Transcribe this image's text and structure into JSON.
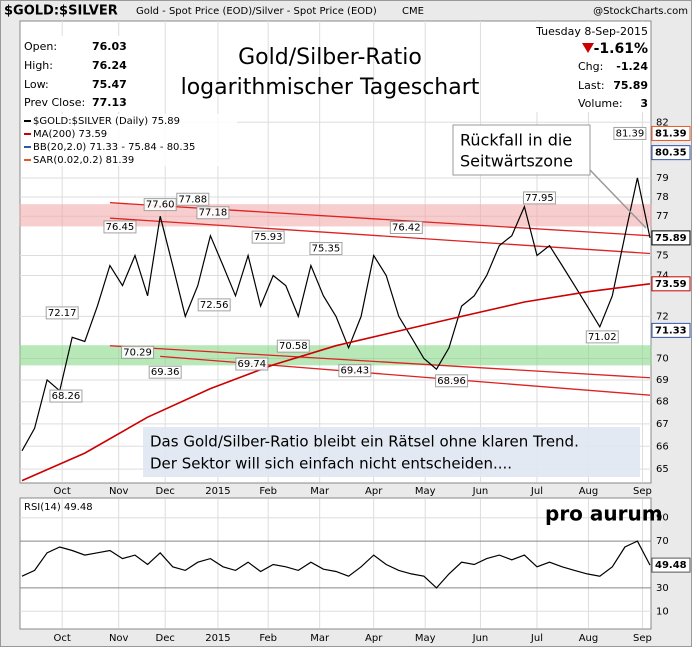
{
  "header": {
    "symbol": "$GOLD:$SILVER",
    "description": "Gold - Spot Price (EOD)/Silver - Spot Price (EOD)",
    "exchange": "CME",
    "source": "@StockCharts.com"
  },
  "info": {
    "rows": [
      {
        "label": "Open:",
        "value": 76.03
      },
      {
        "label": "High:",
        "value": 76.24
      },
      {
        "label": "Low:",
        "value": 75.47
      },
      {
        "label": "Prev Close:",
        "value": 77.13
      }
    ],
    "date": "Tuesday 8-Sep-2015",
    "change_pct": "-1.61%",
    "stats": [
      {
        "label": "Chg:",
        "value": -1.24
      },
      {
        "label": "Last:",
        "value": 75.89
      },
      {
        "label": "Volume:",
        "value": 3
      }
    ]
  },
  "logo": "pro aurum",
  "chart_data": [
    {
      "type": "line",
      "title": "Gold/Silber-Ratio",
      "subtitle": "logarithmischer Tageschart",
      "log_scale": true,
      "grid": true,
      "xlim": [
        0,
        50
      ],
      "ylim": [
        64.44,
        87.7
      ],
      "yticks": [
        65,
        66,
        67,
        68,
        69,
        70,
        72,
        74,
        75,
        77,
        78,
        79,
        82
      ],
      "xticks": [
        {
          "value": 3.2,
          "label": "Oct"
        },
        {
          "value": 7.7,
          "label": "Nov"
        },
        {
          "value": 11.4,
          "label": "Dec"
        },
        {
          "value": 15.6,
          "label": "2015"
        },
        {
          "value": 19.6,
          "label": "Feb"
        },
        {
          "value": 23.7,
          "label": "Mar"
        },
        {
          "value": 28.0,
          "label": "Apr"
        },
        {
          "value": 32.1,
          "label": "May"
        },
        {
          "value": 36.5,
          "label": "Jun"
        },
        {
          "value": 41.0,
          "label": "Jul"
        },
        {
          "value": 45.1,
          "label": "Aug"
        },
        {
          "value": 49.4,
          "label": "Sep"
        }
      ],
      "x": [
        0,
        1,
        2,
        3,
        4,
        5,
        6,
        7,
        8,
        9,
        10,
        11,
        12,
        13,
        14,
        15,
        16,
        17,
        18,
        19,
        20,
        21,
        22,
        23,
        24,
        25,
        26,
        27,
        28,
        29,
        30,
        31,
        32,
        33,
        34,
        35,
        36,
        37,
        38,
        39,
        40,
        41,
        42,
        43,
        44,
        45,
        46,
        47,
        48,
        49,
        50
      ],
      "series": [
        {
          "name": "$GOLD:$SILVER (Daily) 75.89",
          "color": "#000000",
          "values": [
            65.8,
            66.8,
            69.0,
            68.5,
            71.0,
            70.8,
            72.5,
            74.5,
            73.5,
            75.0,
            73.0,
            77.0,
            74.5,
            72.0,
            73.5,
            76.0,
            74.5,
            73.0,
            75.0,
            72.5,
            74.0,
            73.5,
            72.0,
            74.5,
            73.0,
            72.0,
            70.5,
            72.0,
            75.0,
            74.0,
            72.0,
            71.0,
            70.0,
            69.5,
            70.5,
            72.5,
            73.0,
            74.0,
            75.5,
            76.0,
            77.5,
            75.0,
            75.5,
            74.5,
            73.5,
            72.5,
            71.5,
            73.0,
            76.0,
            79.0,
            75.89
          ]
        },
        {
          "name": "MA(200) 73.59",
          "color": "#cc0000",
          "x": [
            0,
            5,
            10,
            15,
            20,
            25,
            30,
            35,
            40,
            45,
            50
          ],
          "values": [
            64.5,
            65.7,
            67.3,
            68.6,
            69.7,
            70.6,
            71.3,
            72.0,
            72.7,
            73.2,
            73.59
          ]
        }
      ],
      "legend_extra": [
        {
          "name": "BB(20,2.0) 71.33 - 75.84 - 80.35",
          "color": "#3355aa"
        },
        {
          "name": "SAR(0.02,0.2) 81.39",
          "color": "#ee5522"
        }
      ],
      "zones": [
        {
          "from": 76.5,
          "to": 77.6,
          "color": "#f4a6a6"
        },
        {
          "from": 69.7,
          "to": 70.6,
          "color": "#7fd67f"
        }
      ],
      "trend_lines": [
        {
          "x": [
            7,
            50
          ],
          "y": [
            77.7,
            76.0
          ]
        },
        {
          "x": [
            7,
            50
          ],
          "y": [
            76.9,
            75.1
          ]
        },
        {
          "x": [
            7,
            50
          ],
          "y": [
            70.6,
            69.1
          ]
        },
        {
          "x": [
            11,
            50
          ],
          "y": [
            70.1,
            68.3
          ]
        }
      ],
      "trend_color": "#dd2222",
      "price_labels": [
        {
          "x": 7.8,
          "value": 76.45,
          "label": "76.45"
        },
        {
          "x": 11.0,
          "value": 77.6,
          "label": "77.60"
        },
        {
          "x": 13.6,
          "value": 77.88,
          "label": "77.88"
        },
        {
          "x": 15.2,
          "value": 77.18,
          "label": "77.18"
        },
        {
          "x": 19.6,
          "value": 75.93,
          "label": "75.93"
        },
        {
          "x": 24.2,
          "value": 75.35,
          "label": "75.35"
        },
        {
          "x": 30.6,
          "value": 76.42,
          "label": "76.42"
        },
        {
          "x": 41.2,
          "value": 77.95,
          "label": "77.95"
        },
        {
          "x": 48.4,
          "value": 81.39,
          "label": "81.39"
        },
        {
          "x": 3.2,
          "value": 72.17,
          "label": "72.17"
        },
        {
          "x": 3.5,
          "value": 68.26,
          "label": "68.26"
        },
        {
          "x": 9.2,
          "value": 70.29,
          "label": "70.29"
        },
        {
          "x": 11.4,
          "value": 69.36,
          "label": "69.36"
        },
        {
          "x": 15.3,
          "value": 72.56,
          "label": "72.56"
        },
        {
          "x": 18.3,
          "value": 69.74,
          "label": "69.74"
        },
        {
          "x": 21.6,
          "value": 70.58,
          "label": "70.58"
        },
        {
          "x": 26.5,
          "value": 69.43,
          "label": "69.43"
        },
        {
          "x": 34.2,
          "value": 68.96,
          "label": "68.96"
        },
        {
          "x": 46.2,
          "value": 71.02,
          "label": "71.02"
        }
      ],
      "last_tags": [
        {
          "value": 81.39,
          "color": "#ee5522"
        },
        {
          "value": 80.35,
          "color": "#3355aa"
        },
        {
          "value": 75.89,
          "color": "#000000"
        },
        {
          "value": 73.59,
          "color": "#cc0000"
        },
        {
          "value": 71.33,
          "color": "#3355aa"
        }
      ],
      "callout": [
        "Rückfall in die",
        "Seitwärtszone"
      ],
      "note": [
        "Das Gold/Silber-Ratio bleibt ein Rätsel ohne klaren Trend.",
        "Der Sektor will sich einfach nicht entscheiden...."
      ]
    },
    {
      "type": "line",
      "grid": true,
      "xlim": [
        0,
        50
      ],
      "ylim": [
        0,
        100
      ],
      "yticks": [
        10,
        30,
        70,
        90
      ],
      "xticks": [
        {
          "value": 3.2,
          "label": "Oct"
        },
        {
          "value": 7.7,
          "label": "Nov"
        },
        {
          "value": 11.4,
          "label": "Dec"
        },
        {
          "value": 15.6,
          "label": "2015"
        },
        {
          "value": 19.6,
          "label": "Feb"
        },
        {
          "value": 23.7,
          "label": "Mar"
        },
        {
          "value": 28.0,
          "label": "Apr"
        },
        {
          "value": 32.1,
          "label": "May"
        },
        {
          "value": 36.5,
          "label": "Jun"
        },
        {
          "value": 41.0,
          "label": "Jul"
        },
        {
          "value": 45.1,
          "label": "Aug"
        },
        {
          "value": 49.4,
          "label": "Sep"
        }
      ],
      "x": [
        0,
        1,
        2,
        3,
        4,
        5,
        6,
        7,
        8,
        9,
        10,
        11,
        12,
        13,
        14,
        15,
        16,
        17,
        18,
        19,
        20,
        21,
        22,
        23,
        24,
        25,
        26,
        27,
        28,
        29,
        30,
        31,
        32,
        33,
        34,
        35,
        36,
        37,
        38,
        39,
        40,
        41,
        42,
        43,
        44,
        45,
        46,
        47,
        48,
        49,
        50
      ],
      "series": [
        {
          "name": "RSI(14) 49.48",
          "color": "#000000",
          "values": [
            40,
            45,
            60,
            65,
            62,
            58,
            60,
            62,
            55,
            58,
            50,
            60,
            48,
            45,
            52,
            55,
            48,
            45,
            52,
            44,
            50,
            48,
            45,
            52,
            46,
            44,
            40,
            48,
            58,
            50,
            45,
            42,
            40,
            30,
            42,
            52,
            50,
            55,
            58,
            54,
            58,
            48,
            52,
            48,
            45,
            42,
            40,
            48,
            65,
            70,
            49.48
          ]
        }
      ],
      "last_tags": [
        {
          "value": 49.48,
          "color": "#555555"
        }
      ]
    }
  ]
}
